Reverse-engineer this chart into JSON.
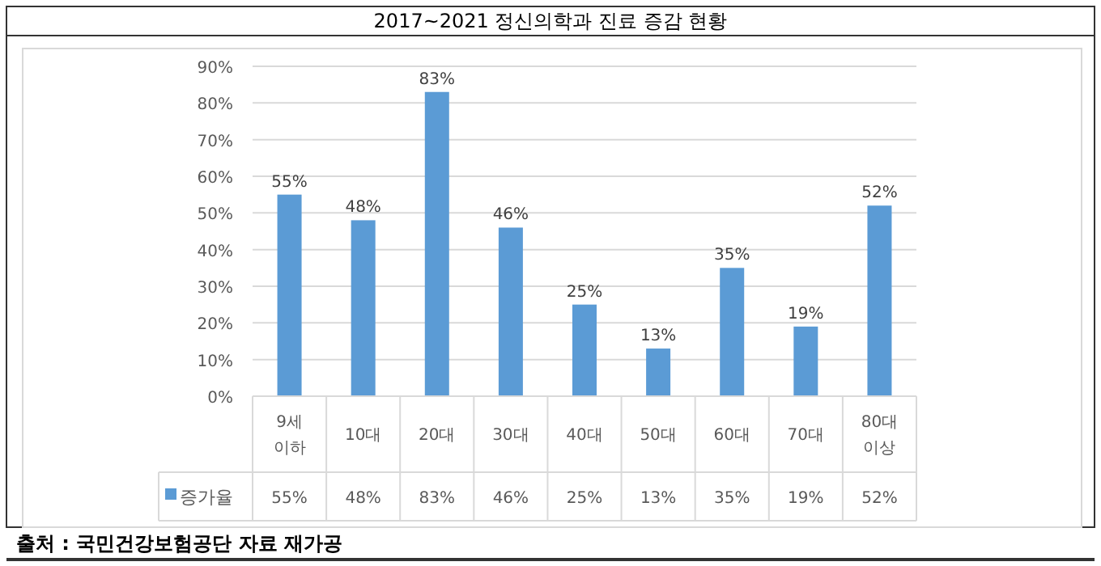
{
  "chart_data": {
    "type": "bar",
    "title": "2017~2021 정신의학과 진료 증감 현황",
    "categories": [
      "9세\n이하",
      "10대",
      "20대",
      "30대",
      "40대",
      "50대",
      "60대",
      "70대",
      "80대\n이상"
    ],
    "series": [
      {
        "name": "증가율",
        "color": "#5b9bd5",
        "values": [
          55,
          48,
          83,
          46,
          25,
          13,
          35,
          19,
          52
        ],
        "value_labels": [
          "55%",
          "48%",
          "83%",
          "46%",
          "25%",
          "13%",
          "35%",
          "19%",
          "52%"
        ]
      }
    ],
    "ylim": [
      0,
      90
    ],
    "yticks": [
      {
        "value": 0,
        "label": "0%"
      },
      {
        "value": 10,
        "label": "10%"
      },
      {
        "value": 20,
        "label": "20%"
      },
      {
        "value": 30,
        "label": "30%"
      },
      {
        "value": 40,
        "label": "40%"
      },
      {
        "value": 50,
        "label": "50%"
      },
      {
        "value": 60,
        "label": "60%"
      },
      {
        "value": 70,
        "label": "70%"
      },
      {
        "value": 80,
        "label": "80%"
      },
      {
        "value": 90,
        "label": "90%"
      }
    ],
    "grid": "y",
    "legend": "bottom",
    "annotations": [
      "출처 : 국민건강보험공단 자료 재가공"
    ]
  }
}
